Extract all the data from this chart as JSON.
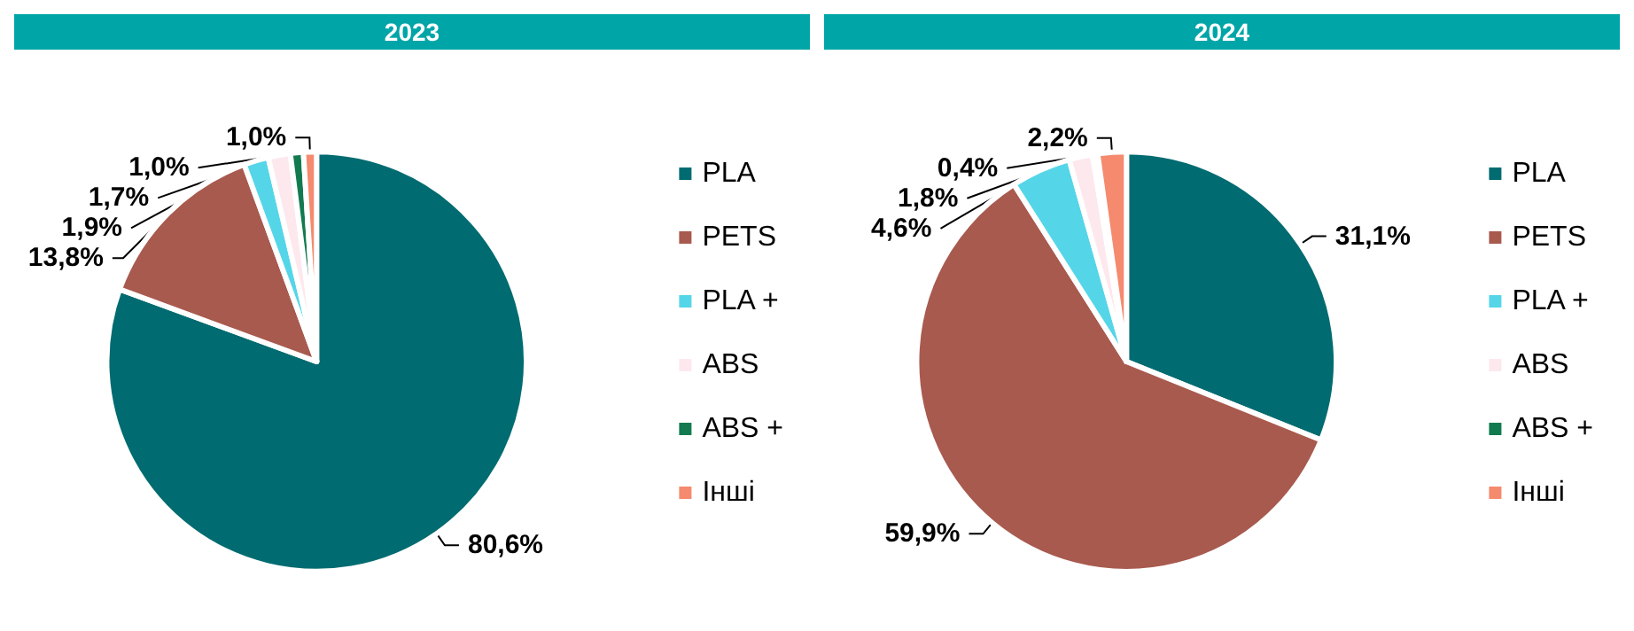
{
  "chart_data": [
    {
      "type": "pie",
      "title": "2023",
      "categories": [
        "PLA",
        "PETS",
        "PLA +",
        "ABS",
        "ABS +",
        "Інші"
      ],
      "values": [
        80.6,
        13.8,
        1.9,
        1.7,
        1.0,
        1.0
      ],
      "colors": [
        "#006b70",
        "#a85a4e",
        "#55d6e8",
        "#fde8ee",
        "#127a4f",
        "#f58a6e"
      ],
      "value_labels": [
        "80,6%",
        "13,8%",
        "1,9%",
        "1,7%",
        "1,0%",
        "1,0%"
      ],
      "legend": "right"
    },
    {
      "type": "pie",
      "title": "2024",
      "categories": [
        "PLA",
        "PETS",
        "PLA +",
        "ABS",
        "ABS +",
        "Інші"
      ],
      "values": [
        31.1,
        59.9,
        4.6,
        1.8,
        0.4,
        2.2
      ],
      "colors": [
        "#006b70",
        "#a85a4e",
        "#55d6e8",
        "#fde8ee",
        "#127a4f",
        "#f58a6e"
      ],
      "value_labels": [
        "31,1%",
        "59,9%",
        "4,6%",
        "1,8%",
        "0,4%",
        "2,2%"
      ],
      "legend": "right"
    }
  ]
}
